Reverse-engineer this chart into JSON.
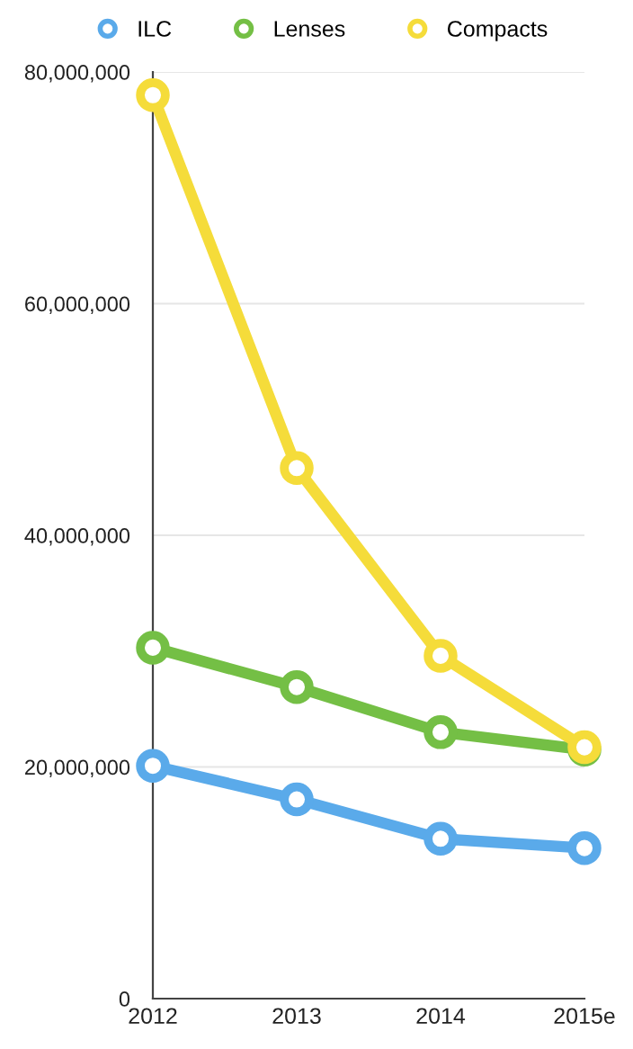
{
  "chart_data": {
    "type": "line",
    "categories": [
      "2012",
      "2013",
      "2014",
      "2015e"
    ],
    "series": [
      {
        "name": "ILC",
        "color": "#5aaaea",
        "values": [
          20100000,
          17200000,
          13800000,
          13000000
        ]
      },
      {
        "name": "Lenses",
        "color": "#74bf45",
        "values": [
          30300000,
          26900000,
          23000000,
          21500000
        ]
      },
      {
        "name": "Compacts",
        "color": "#f5dc3a",
        "values": [
          78000000,
          45800000,
          29600000,
          21700000
        ]
      }
    ],
    "ylim": [
      0,
      80000000
    ],
    "yticks": [
      {
        "value": 0,
        "label": "0"
      },
      {
        "value": 20000000,
        "label": "20,000,000"
      },
      {
        "value": 40000000,
        "label": "40,000,000"
      },
      {
        "value": 60000000,
        "label": "60,000,000"
      },
      {
        "value": 80000000,
        "label": "80,000,000"
      }
    ],
    "grid": "y",
    "legend": "top",
    "marker": "circle",
    "line_style": "solid"
  }
}
